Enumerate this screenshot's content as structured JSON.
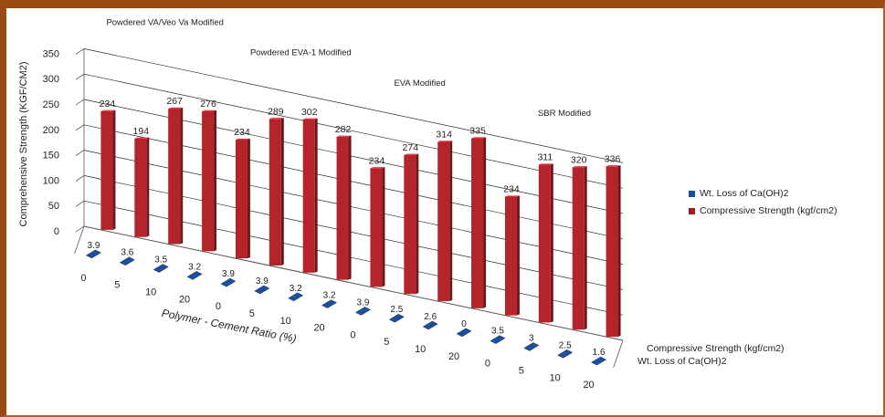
{
  "chart_data": {
    "type": "bar",
    "variant": "3d-column",
    "ylabel": "Comprehensive Strength (KGF/CM2)",
    "xlabel": "Polymer - Cement Ratio (%)",
    "yticks": [
      0,
      50,
      100,
      150,
      200,
      250,
      300,
      350
    ],
    "ylim": [
      0,
      350
    ],
    "grid": true,
    "legend_position": "right",
    "groups": [
      {
        "name": "Powdered VA/Veo Va Modified",
        "ratios": [
          "0",
          "5",
          "10",
          "20"
        ],
        "strength": [
          234,
          194,
          267,
          276
        ],
        "wt_loss": [
          3.9,
          3.6,
          3.5,
          3.2
        ],
        "wt_loss_labels": [
          "3.9",
          "3.6",
          "3.5",
          "3.2"
        ]
      },
      {
        "name": "Powdered EVA-1 Modified",
        "ratios": [
          "0",
          "5",
          "10",
          "20"
        ],
        "strength": [
          234,
          289,
          302,
          282
        ],
        "wt_loss": [
          3.9,
          3.9,
          3.2,
          3.2
        ],
        "wt_loss_labels": [
          "3.9",
          "3.9",
          "3.2",
          "3.2"
        ]
      },
      {
        "name": "EVA Modified",
        "ratios": [
          "0",
          "5",
          "10",
          "20"
        ],
        "strength": [
          234,
          274,
          314,
          335
        ],
        "wt_loss": [
          3.9,
          2.5,
          2.6,
          0
        ],
        "wt_loss_labels": [
          "3.9",
          "2.5",
          "2.6",
          "0"
        ]
      },
      {
        "name": "SBR Modified",
        "ratios": [
          "0",
          "5",
          "10",
          "20"
        ],
        "strength": [
          234,
          311,
          320,
          336
        ],
        "wt_loss": [
          3.5,
          3,
          2.5,
          1.6
        ],
        "wt_loss_labels": [
          "3.5",
          "3",
          "2.5",
          "1.6"
        ]
      }
    ],
    "series": [
      {
        "name": "Wt. Loss of Ca(OH)2",
        "color": "#1f4e9c"
      },
      {
        "name": "Compressive Strength (kgf/cm2)",
        "color": "#b3252a"
      }
    ],
    "depth_axis_labels": [
      "Compressive Strength (kgf/cm2)",
      "Wt. Loss of Ca(OH)2"
    ]
  }
}
